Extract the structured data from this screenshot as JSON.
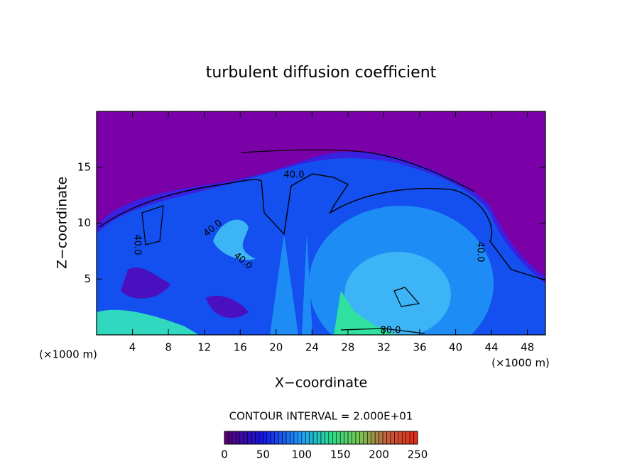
{
  "chart_data": {
    "type": "contour",
    "title": "turbulent diffusion coefficient",
    "xlabel": "X−coordinate",
    "ylabel": "Z−coordinate",
    "x_unit_label": "(×1000 m)",
    "y_unit_label": "(×1000 m)",
    "xlim": [
      0,
      50
    ],
    "ylim": [
      0,
      20
    ],
    "xticks": [
      4,
      8,
      12,
      16,
      20,
      24,
      28,
      32,
      36,
      40,
      44,
      48
    ],
    "yticks": [
      5,
      10,
      15
    ],
    "contour_interval_label": "CONTOUR INTERVAL = 2.000E+01",
    "contour_labels": [
      {
        "value": 40,
        "label": "40.0"
      },
      {
        "value": 40,
        "label": "40.0"
      },
      {
        "value": 40,
        "label": "40.0"
      },
      {
        "value": 40,
        "label": "40.0"
      },
      {
        "value": 40,
        "label": "40.0"
      },
      {
        "value": 80,
        "label": "80.0"
      }
    ],
    "colorbar": {
      "lim": [
        0,
        250
      ],
      "ticks": [
        0,
        50,
        100,
        150,
        200,
        250
      ]
    }
  }
}
